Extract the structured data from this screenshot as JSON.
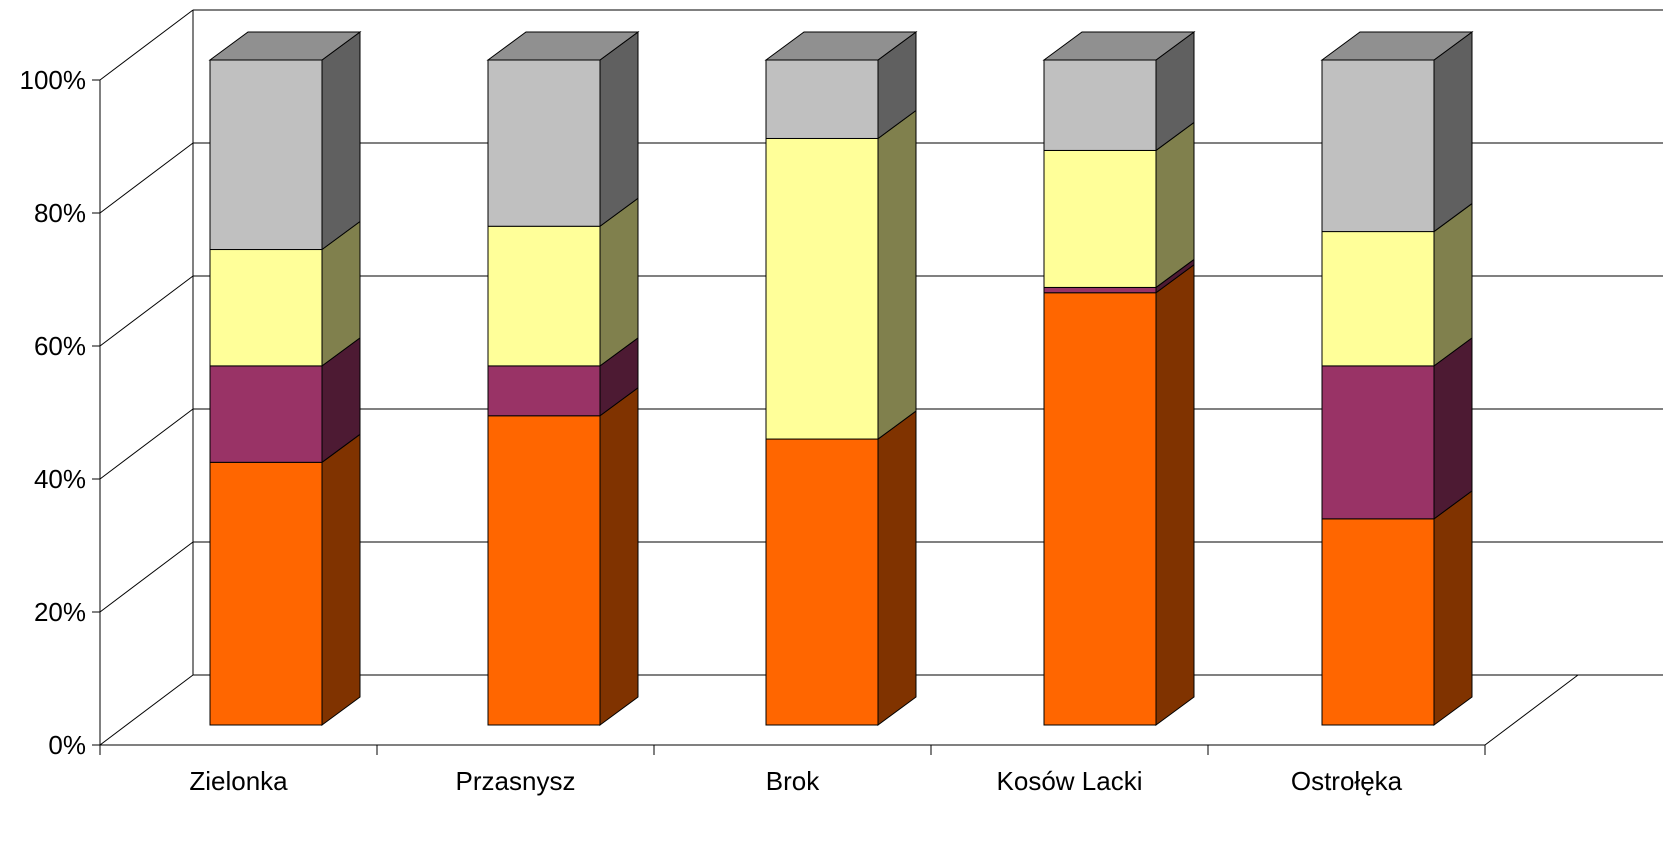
{
  "chart_data": {
    "type": "bar",
    "subtype": "100% stacked 3D column",
    "categories": [
      "Zielonka",
      "Przasnysz",
      "Brok",
      "Kosów Lacki",
      "Ostrołęka"
    ],
    "series": [
      {
        "color": "#FF6600",
        "side_color": "#803300",
        "values": [
          39.5,
          46.5,
          43,
          65,
          31
        ]
      },
      {
        "color": "#993366",
        "side_color": "#4D1A33",
        "values": [
          14.5,
          7.5,
          0,
          0.8,
          23
        ]
      },
      {
        "color": "#FFFF99",
        "side_color": "#80804D",
        "values": [
          17.5,
          21,
          45.2,
          20.6,
          20.2
        ]
      },
      {
        "color": "#C0C0C0",
        "side_color": "#606060",
        "values": [
          28.5,
          25,
          11.8,
          13.6,
          25.8
        ]
      }
    ],
    "top_color": "#909090",
    "ylim": [
      0,
      100
    ],
    "yticks": [
      "0%",
      "20%",
      "40%",
      "60%",
      "80%",
      "100%"
    ],
    "grid": true,
    "legend": "none"
  }
}
